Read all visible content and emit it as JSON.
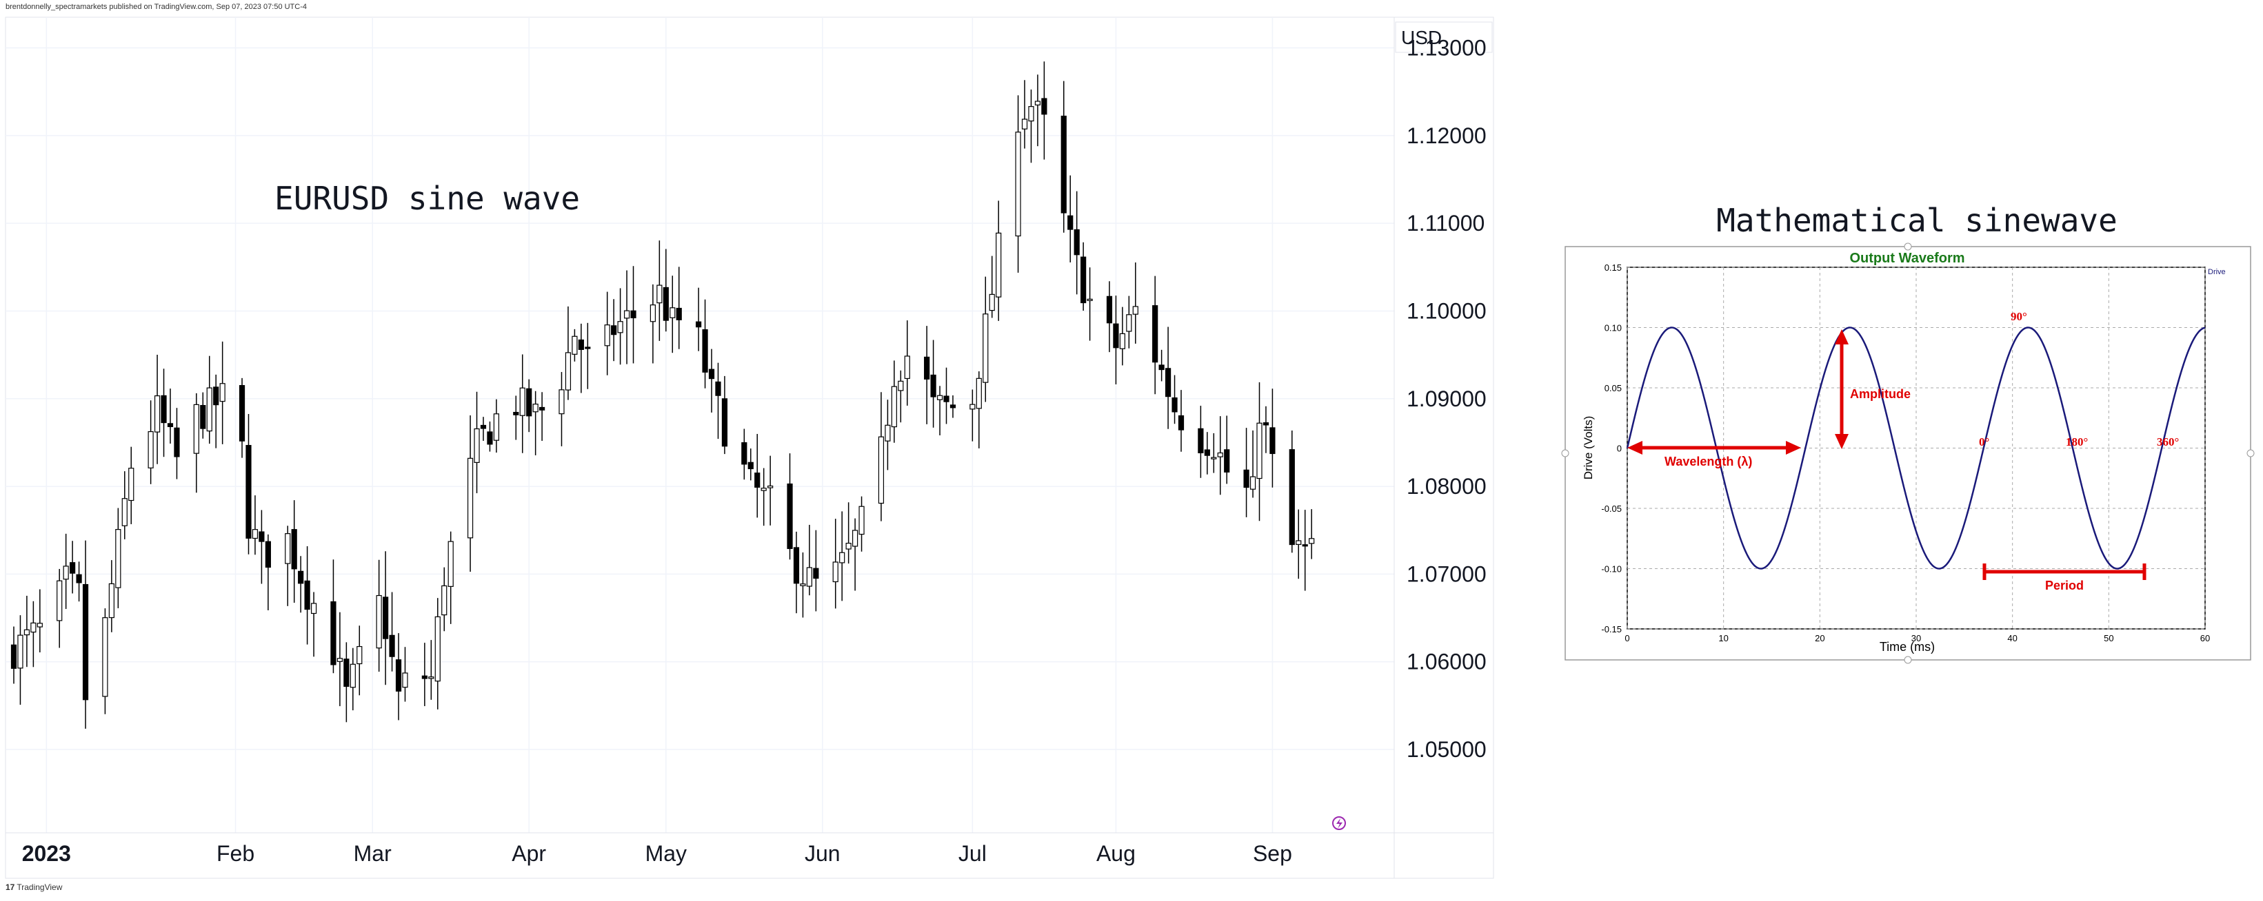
{
  "header": {
    "published_by": "brentdonnelly_spectramarkets published on TradingView.com, Sep 07, 2023 07:50 UTC-4"
  },
  "footer": {
    "brand": "TradingView",
    "logo_text": "17"
  },
  "chart_data": [
    {
      "type": "candlestick",
      "title": "EURUSD sine wave",
      "currency": "USD",
      "y_ticks": [
        "1.13000",
        "1.12000",
        "1.11000",
        "1.10000",
        "1.09000",
        "1.08000",
        "1.07000",
        "1.06000",
        "1.05000"
      ],
      "ylim": [
        1.0405,
        1.1335
      ],
      "x_labels": [
        "2023",
        "Feb",
        "Mar",
        "Apr",
        "May",
        "Jun",
        "Jul",
        "Aug",
        "Sep"
      ],
      "x_label_days": [
        5,
        34,
        55,
        79,
        100,
        124,
        147,
        169,
        193
      ],
      "day_range": [
        0,
        203
      ],
      "anchors": [
        [
          0,
          1.0615
        ],
        [
          5,
          1.064
        ],
        [
          8,
          1.069
        ],
        [
          10,
          1.0675
        ],
        [
          11,
          1.056
        ],
        [
          12,
          1.0545
        ],
        [
          14,
          1.064
        ],
        [
          18,
          1.0825
        ],
        [
          22,
          1.0885
        ],
        [
          25,
          1.083
        ],
        [
          28,
          1.088
        ],
        [
          32,
          1.09
        ],
        [
          33,
          1.099
        ],
        [
          34,
          1.096
        ],
        [
          35,
          1.084
        ],
        [
          36,
          1.076
        ],
        [
          38,
          1.072
        ],
        [
          42,
          1.074
        ],
        [
          45,
          1.068
        ],
        [
          48,
          1.064
        ],
        [
          51,
          1.056
        ],
        [
          53,
          1.06
        ],
        [
          55,
          1.069
        ],
        [
          57,
          1.064
        ],
        [
          59,
          1.056
        ],
        [
          61,
          1.059
        ],
        [
          64,
          1.058
        ],
        [
          66,
          1.07
        ],
        [
          69,
          1.079
        ],
        [
          71,
          1.0845
        ],
        [
          76,
          1.09
        ],
        [
          80,
          1.088
        ],
        [
          83,
          1.09
        ],
        [
          86,
          1.0975
        ],
        [
          89,
          1.093
        ],
        [
          92,
          1.098
        ],
        [
          96,
          1.1
        ],
        [
          99,
          1.102
        ],
        [
          101,
          1.0985
        ],
        [
          104,
          1.0995
        ],
        [
          107,
          1.0905
        ],
        [
          110,
          1.085
        ],
        [
          113,
          1.08
        ],
        [
          116,
          1.078
        ],
        [
          119,
          1.072
        ],
        [
          121,
          1.07
        ],
        [
          124,
          1.068
        ],
        [
          127,
          1.071
        ],
        [
          129,
          1.074
        ],
        [
          132,
          1.079
        ],
        [
          135,
          1.093
        ],
        [
          138,
          1.096
        ],
        [
          141,
          1.089
        ],
        [
          144,
          1.089
        ],
        [
          146,
          1.086
        ],
        [
          147,
          1.09
        ],
        [
          149,
          1.098
        ],
        [
          152,
          1.111
        ],
        [
          154,
          1.1225
        ],
        [
          156,
          1.1235
        ],
        [
          158,
          1.121
        ],
        [
          160,
          1.113
        ],
        [
          163,
          1.105
        ],
        [
          166,
          1.099
        ],
        [
          169,
          1.096
        ],
        [
          172,
          1.1
        ],
        [
          175,
          1.095
        ],
        [
          178,
          1.089
        ],
        [
          181,
          1.086
        ],
        [
          184,
          1.085
        ],
        [
          187,
          1.08
        ],
        [
          190,
          1.079
        ],
        [
          191,
          1.089
        ],
        [
          192,
          1.086
        ],
        [
          194,
          1.079
        ],
        [
          196,
          1.073
        ],
        [
          198,
          1.0725
        ],
        [
          199,
          1.0725
        ]
      ]
    },
    {
      "type": "line",
      "title": "Mathematical sinewave",
      "subtitle": "Output Waveform",
      "legend": "Drive",
      "xlabel": "Time (ms)",
      "ylabel": "Drive (Volts)",
      "xlim": [
        0,
        60
      ],
      "ylim": [
        -0.15,
        0.15
      ],
      "x_ticks": [
        "0",
        "10",
        "20",
        "30",
        "40",
        "50",
        "60"
      ],
      "y_ticks": [
        "0.15",
        "0.10",
        "0.05",
        "0",
        "-0.05",
        "-0.10",
        "-0.15"
      ],
      "function": {
        "amplitude": 0.1,
        "period_ms": 18.5,
        "phase_ms": 0
      },
      "annotations": {
        "wavelength": "Wavelength (λ)",
        "amplitude": "Amplitude",
        "period": "Period",
        "deg_0": "0°",
        "deg_90": "90°",
        "deg_180": "180°",
        "deg_360": "360°"
      },
      "colors": {
        "line": "#1a1a7a",
        "annotation": "#e00000",
        "subtitle": "#1a7a1a"
      }
    }
  ]
}
